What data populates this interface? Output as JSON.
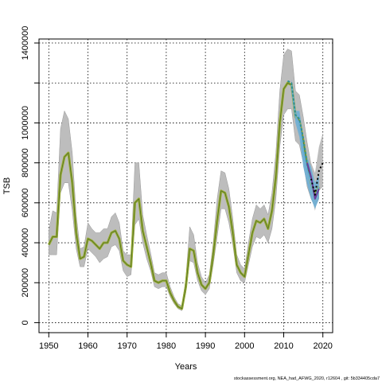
{
  "chart_data": {
    "type": "line",
    "title": "",
    "xlabel": "Years",
    "ylabel": "TSB",
    "xlim": [
      1947.5,
      2022.5
    ],
    "ylim": [
      -50000,
      1420000
    ],
    "x_ticks": [
      1950,
      1960,
      1970,
      1980,
      1990,
      2000,
      2010,
      2020
    ],
    "y_ticks": [
      0,
      200000,
      400000,
      600000,
      800000,
      1000000,
      1200000,
      1400000
    ],
    "y_tick_labels": [
      "0",
      "200000",
      "400000",
      "600000",
      "800000",
      "1000000",
      "",
      "1400000"
    ],
    "grid": true,
    "colors": {
      "band": "#bdbdbd",
      "band_edge": "#999999",
      "main_line": "#9aaf2f",
      "main_inner": "#4f6b2f",
      "retro_blue": "#6aaed6",
      "retro_teal": "#2f8f8f",
      "retro_purple": "#6a3d9a",
      "retro_black": "#000000",
      "grid": "#000000"
    },
    "x": [
      1950,
      1951,
      1952,
      1953,
      1954,
      1955,
      1956,
      1957,
      1958,
      1959,
      1960,
      1961,
      1962,
      1963,
      1964,
      1965,
      1966,
      1967,
      1968,
      1969,
      1970,
      1971,
      1972,
      1973,
      1974,
      1975,
      1976,
      1977,
      1978,
      1979,
      1980,
      1981,
      1982,
      1983,
      1984,
      1985,
      1986,
      1987,
      1988,
      1989,
      1990,
      1991,
      1992,
      1993,
      1994,
      1995,
      1996,
      1997,
      1998,
      1999,
      2000,
      2001,
      2002,
      2003,
      2004,
      2005,
      2006,
      2007,
      2008,
      2009,
      2010,
      2011,
      2012,
      2013,
      2014,
      2015,
      2016,
      2017,
      2018,
      2019
    ],
    "series": [
      {
        "values": [
          390000,
          430000,
          430000,
          740000,
          830000,
          850000,
          700000,
          450000,
          320000,
          330000,
          420000,
          410000,
          390000,
          370000,
          400000,
          400000,
          450000,
          460000,
          420000,
          310000,
          290000,
          280000,
          600000,
          620000,
          460000,
          380000,
          300000,
          210000,
          200000,
          210000,
          210000,
          150000,
          110000,
          80000,
          70000,
          180000,
          370000,
          360000,
          250000,
          190000,
          170000,
          200000,
          340000,
          510000,
          660000,
          650000,
          580000,
          450000,
          290000,
          250000,
          230000,
          340000,
          450000,
          510000,
          500000,
          520000,
          470000,
          560000,
          730000,
          1000000,
          1170000,
          1200000,
          1190000,
          1030000,
          1010000,
          910000,
          780000,
          700000,
          640000,
          680000
        ],
        "lower": [
          340000,
          340000,
          340000,
          650000,
          700000,
          700000,
          560000,
          370000,
          280000,
          280000,
          370000,
          350000,
          330000,
          300000,
          320000,
          330000,
          380000,
          390000,
          360000,
          260000,
          230000,
          240000,
          490000,
          520000,
          400000,
          320000,
          260000,
          180000,
          170000,
          180000,
          180000,
          130000,
          95000,
          70000,
          60000,
          150000,
          310000,
          300000,
          210000,
          160000,
          140000,
          170000,
          290000,
          430000,
          570000,
          570000,
          500000,
          390000,
          250000,
          210000,
          200000,
          290000,
          380000,
          430000,
          420000,
          440000,
          400000,
          470000,
          620000,
          880000,
          1040000,
          1070000,
          1070000,
          910000,
          890000,
          800000,
          680000,
          620000,
          580000,
          620000
        ],
        "upper": [
          460000,
          560000,
          550000,
          970000,
          1060000,
          1020000,
          850000,
          540000,
          370000,
          380000,
          500000,
          470000,
          450000,
          450000,
          470000,
          470000,
          530000,
          550000,
          500000,
          360000,
          340000,
          340000,
          800000,
          800000,
          540000,
          440000,
          350000,
          250000,
          240000,
          250000,
          250000,
          180000,
          130000,
          95000,
          85000,
          220000,
          480000,
          440000,
          300000,
          230000,
          200000,
          240000,
          400000,
          620000,
          760000,
          750000,
          670000,
          520000,
          340000,
          290000,
          270000,
          400000,
          520000,
          590000,
          570000,
          590000,
          540000,
          650000,
          850000,
          1160000,
          1340000,
          1370000,
          1360000,
          1160000,
          1140000,
          1030000,
          900000,
          790000,
          720000,
          780000
        ]
      }
    ],
    "retro_lines": [
      {
        "color": "#6aaed6",
        "x": [
          2012,
          2013,
          2014,
          2015,
          2016,
          2017,
          2018,
          2019
        ],
        "values": [
          1190000,
          1030000,
          1000000,
          860000,
          760000,
          700000,
          630000,
          680000
        ]
      },
      {
        "color": "#2f8f8f",
        "x": [
          2011,
          2012,
          2013,
          2014,
          2015,
          2016,
          2017
        ],
        "values": [
          1210000,
          1200000,
          1040000,
          1020000,
          920000,
          790000,
          720000
        ]
      },
      {
        "color": "#6a3d9a",
        "x": [
          2016,
          2017,
          2018,
          2019
        ],
        "values": [
          800000,
          730000,
          620000,
          670000
        ]
      },
      {
        "color": "#000000",
        "x": [
          2017,
          2018,
          2019,
          2020
        ],
        "values": [
          720000,
          640000,
          760000,
          800000
        ]
      }
    ],
    "retro_band": {
      "x": [
        2012,
        2013,
        2014,
        2015,
        2016,
        2017,
        2018,
        2019
      ],
      "lower": [
        1180000,
        1000000,
        930000,
        780000,
        690000,
        620000,
        570000,
        620000
      ],
      "upper": [
        1220000,
        1060000,
        1060000,
        940000,
        830000,
        780000,
        700000,
        740000
      ]
    },
    "uncertainty_tail": {
      "x": [
        2017,
        2018,
        2019,
        2020
      ],
      "lower": [
        640000,
        560000,
        660000,
        680000
      ],
      "upper": [
        800000,
        750000,
        880000,
        950000
      ]
    }
  },
  "footer": {
    "text": "stockassessment.org, NEA_had_AFWG_2020, r12604 , git: 5b334405cda7"
  }
}
